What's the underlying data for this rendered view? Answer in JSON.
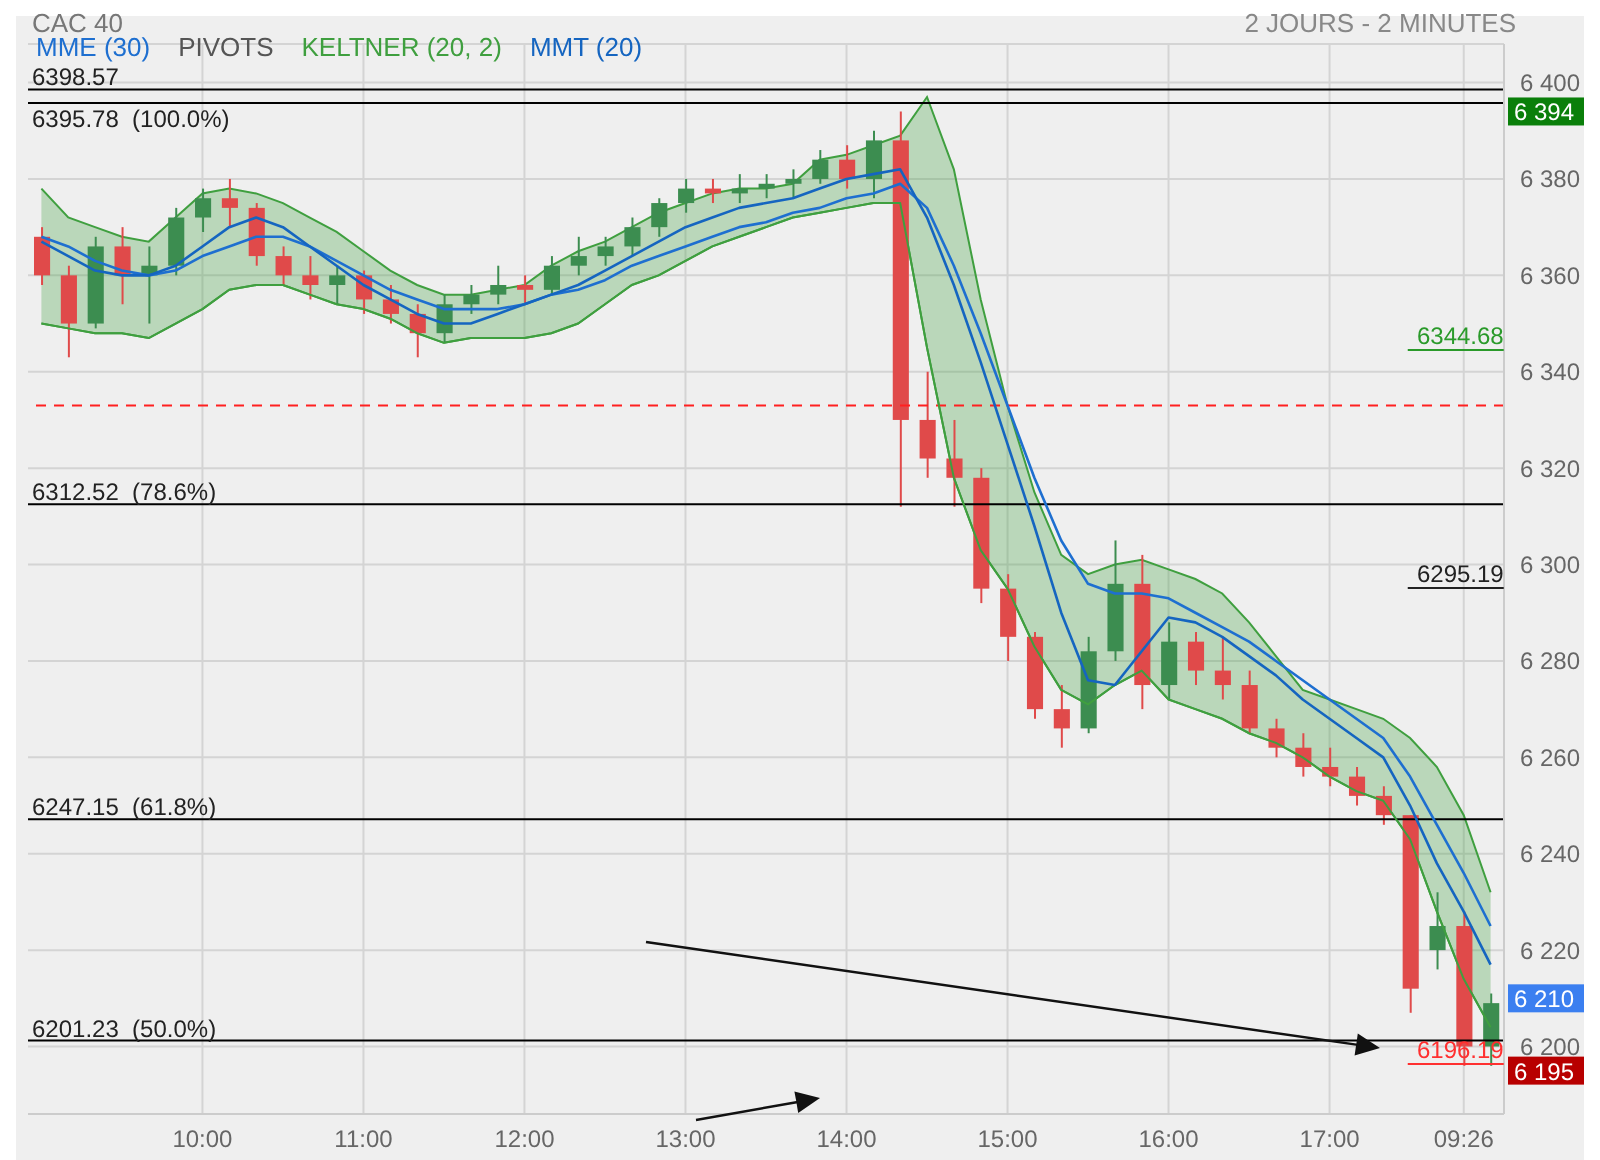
{
  "chart_data": {
    "type": "candlestick",
    "title": "CAC 40",
    "subtitle": "2 JOURS - 2 MINUTES",
    "categories": [
      null,
      null,
      null,
      null,
      null,
      null,
      "10:00",
      null,
      null,
      null,
      null,
      null,
      "11:00",
      null,
      null,
      null,
      null,
      null,
      "12:00",
      null,
      null,
      null,
      null,
      null,
      "13:00",
      null,
      null,
      null,
      null,
      null,
      "14:00",
      null,
      null,
      null,
      null,
      null,
      "15:00",
      null,
      null,
      null,
      null,
      null,
      "16:00",
      null,
      null,
      null,
      null,
      null,
      "17:00",
      null,
      null,
      null,
      null,
      "09:26",
      null
    ],
    "ohlc": [
      [
        6368,
        6370,
        6358,
        6360
      ],
      [
        6360,
        6362,
        6343,
        6350
      ],
      [
        6350,
        6368,
        6349,
        6366
      ],
      [
        6366,
        6370,
        6354,
        6360
      ],
      [
        6360,
        6366,
        6350,
        6362
      ],
      [
        6362,
        6374,
        6360,
        6372
      ],
      [
        6372,
        6378,
        6369,
        6376
      ],
      [
        6376,
        6380,
        6370,
        6374
      ],
      [
        6374,
        6375,
        6362,
        6364
      ],
      [
        6364,
        6366,
        6358,
        6360
      ],
      [
        6360,
        6364,
        6355,
        6358
      ],
      [
        6358,
        6362,
        6354,
        6360
      ],
      [
        6360,
        6361,
        6352,
        6355
      ],
      [
        6355,
        6358,
        6350,
        6352
      ],
      [
        6352,
        6354,
        6343,
        6348
      ],
      [
        6348,
        6356,
        6346,
        6354
      ],
      [
        6354,
        6358,
        6352,
        6356
      ],
      [
        6356,
        6362,
        6354,
        6358
      ],
      [
        6358,
        6360,
        6354,
        6357
      ],
      [
        6357,
        6364,
        6356,
        6362
      ],
      [
        6362,
        6368,
        6360,
        6364
      ],
      [
        6364,
        6368,
        6362,
        6366
      ],
      [
        6366,
        6372,
        6364,
        6370
      ],
      [
        6370,
        6376,
        6368,
        6375
      ],
      [
        6375,
        6380,
        6373,
        6378
      ],
      [
        6378,
        6380,
        6375,
        6377
      ],
      [
        6377,
        6381,
        6375,
        6378
      ],
      [
        6378,
        6381,
        6376,
        6379
      ],
      [
        6379,
        6382,
        6376,
        6380
      ],
      [
        6380,
        6386,
        6379,
        6384
      ],
      [
        6384,
        6387,
        6378,
        6380
      ],
      [
        6380,
        6390,
        6376,
        6388
      ],
      [
        6388,
        6394,
        6312,
        6330
      ],
      [
        6330,
        6340,
        6318,
        6322
      ],
      [
        6322,
        6330,
        6312,
        6318
      ],
      [
        6318,
        6320,
        6292,
        6295
      ],
      [
        6295,
        6298,
        6280,
        6285
      ],
      [
        6285,
        6286,
        6268,
        6270
      ],
      [
        6270,
        6275,
        6262,
        6266
      ],
      [
        6266,
        6285,
        6265,
        6282
      ],
      [
        6282,
        6305,
        6280,
        6296
      ],
      [
        6296,
        6302,
        6270,
        6275
      ],
      [
        6275,
        6288,
        6272,
        6284
      ],
      [
        6284,
        6286,
        6275,
        6278
      ],
      [
        6278,
        6285,
        6272,
        6275
      ],
      [
        6275,
        6278,
        6265,
        6266
      ],
      [
        6266,
        6268,
        6260,
        6262
      ],
      [
        6262,
        6265,
        6256,
        6258
      ],
      [
        6258,
        6262,
        6254,
        6256
      ],
      [
        6256,
        6258,
        6250,
        6252
      ],
      [
        6252,
        6254,
        6246,
        6248
      ],
      [
        6248,
        6248,
        6207,
        6212
      ],
      [
        6220,
        6232,
        6216,
        6225
      ],
      [
        6225,
        6228,
        6196,
        6200
      ],
      [
        6200,
        6211,
        6196,
        6209
      ]
    ],
    "colors": [
      "#e04a4a",
      "#e04a4a",
      "#3c8d50",
      "#e04a4a",
      "#3c8d50",
      "#3c8d50",
      "#3c8d50",
      "#e04a4a",
      "#e04a4a",
      "#e04a4a",
      "#e04a4a",
      "#3c8d50",
      "#e04a4a",
      "#e04a4a",
      "#e04a4a",
      "#3c8d50",
      "#3c8d50",
      "#3c8d50",
      "#e04a4a",
      "#3c8d50",
      "#3c8d50",
      "#3c8d50",
      "#3c8d50",
      "#3c8d50",
      "#3c8d50",
      "#e04a4a",
      "#3c8d50",
      "#3c8d50",
      "#3c8d50",
      "#3c8d50",
      "#e04a4a",
      "#3c8d50",
      "#e04a4a",
      "#e04a4a",
      "#e04a4a",
      "#e04a4a",
      "#e04a4a",
      "#e04a4a",
      "#e04a4a",
      "#3c8d50",
      "#3c8d50",
      "#e04a4a",
      "#3c8d50",
      "#e04a4a",
      "#e04a4a",
      "#e04a4a",
      "#e04a4a",
      "#e04a4a",
      "#e04a4a",
      "#e04a4a",
      "#e04a4a",
      "#e04a4a",
      "#3c8d50",
      "#e04a4a",
      "#3c8d50"
    ],
    "series": [
      {
        "name": "MME (30)",
        "type": "line",
        "color": "#1e6fd0",
        "values": [
          6368,
          6366,
          6363,
          6361,
          6360,
          6361,
          6364,
          6366,
          6368,
          6368,
          6366,
          6363,
          6360,
          6357,
          6355,
          6353,
          6353,
          6353,
          6354,
          6356,
          6357,
          6359,
          6362,
          6364,
          6366,
          6368,
          6370,
          6371,
          6373,
          6374,
          6376,
          6377,
          6379,
          6374,
          6362,
          6348,
          6333,
          6318,
          6305,
          6296,
          6294,
          6294,
          6293,
          6290,
          6287,
          6284,
          6280,
          6276,
          6272,
          6268,
          6264,
          6256,
          6246,
          6236,
          6225
        ]
      },
      {
        "name": "KELTNER (20, 2)",
        "type": "area",
        "color": "#3f9f3f",
        "values": [
          6378,
          6372,
          6370,
          6368,
          6367,
          6372,
          6377,
          6378,
          6377,
          6375,
          6372,
          6369,
          6365,
          6361,
          6358,
          6356,
          6356,
          6357,
          6358,
          6362,
          6365,
          6367,
          6370,
          6373,
          6375,
          6377,
          6378,
          6378,
          6379,
          6384,
          6385,
          6387,
          6389,
          6397,
          6382,
          6355,
          6333,
          6315,
          6302,
          6298,
          6300,
          6301,
          6299,
          6297,
          6294,
          6288,
          6281,
          6274,
          6272,
          6270,
          6268,
          6264,
          6258,
          6248,
          6232
        ]
      },
      {
        "type": "line",
        "color": "#3f9f3f",
        "values": [
          6350,
          6349,
          6348,
          6348,
          6347,
          6350,
          6353,
          6357,
          6358,
          6358,
          6356,
          6354,
          6353,
          6351,
          6348,
          6346,
          6347,
          6347,
          6347,
          6348,
          6350,
          6354,
          6358,
          6360,
          6363,
          6366,
          6368,
          6370,
          6372,
          6373,
          6374,
          6375,
          6375,
          6345,
          6318,
          6303,
          6295,
          6283,
          6274,
          6271,
          6275,
          6278,
          6272,
          6270,
          6268,
          6265,
          6263,
          6260,
          6256,
          6253,
          6251,
          6243,
          6228,
          6214,
          6204
        ]
      },
      {
        "name": "MMT (20)",
        "type": "line",
        "color": "#1565c0",
        "values": [
          6367,
          6364,
          6361,
          6360,
          6360,
          6362,
          6366,
          6370,
          6372,
          6370,
          6366,
          6362,
          6358,
          6355,
          6352,
          6350,
          6350,
          6352,
          6354,
          6356,
          6358,
          6361,
          6364,
          6367,
          6370,
          6372,
          6374,
          6375,
          6376,
          6378,
          6380,
          6381,
          6382,
          6372,
          6358,
          6342,
          6325,
          6308,
          6290,
          6276,
          6275,
          6282,
          6289,
          6288,
          6285,
          6281,
          6277,
          6272,
          6268,
          6264,
          6260,
          6250,
          6238,
          6228,
          6217
        ]
      }
    ],
    "ylim": [
      6186,
      6408
    ],
    "yticks": [
      {
        "value": 6200,
        "label": "6 200"
      },
      {
        "value": 6220,
        "label": "6 220"
      },
      {
        "value": 6240,
        "label": "6 240"
      },
      {
        "value": 6260,
        "label": "6 260"
      },
      {
        "value": 6280,
        "label": "6 280"
      },
      {
        "value": 6300,
        "label": "6 300"
      },
      {
        "value": 6320,
        "label": "6 320"
      },
      {
        "value": 6340,
        "label": "6 340"
      },
      {
        "value": 6360,
        "label": "6 360"
      },
      {
        "value": 6380,
        "label": "6 380"
      },
      {
        "value": 6400,
        "label": "6 400"
      }
    ],
    "ref_lines": [
      {
        "axis": "y",
        "value": 6398.57,
        "label": "6398.57",
        "color": "#000000",
        "line_style": "solid"
      },
      {
        "axis": "y",
        "value": 6395.78,
        "label": "6395.78  (100.0%)",
        "color": "#000000",
        "line_style": "solid"
      },
      {
        "axis": "y",
        "value": 6312.52,
        "label": "6312.52  (78.6%)",
        "color": "#000000",
        "line_style": "solid"
      },
      {
        "axis": "y",
        "value": 6247.15,
        "label": "6247.15  (61.8%)",
        "color": "#000000",
        "line_style": "solid"
      },
      {
        "axis": "y",
        "value": 6201.23,
        "label": "6201.23  (50.0%)",
        "color": "#000000",
        "line_style": "solid"
      },
      {
        "axis": "y",
        "value": 6333,
        "color": "#ff2020",
        "line_style": "dashed"
      }
    ],
    "annotations": [
      "PIVOTS",
      {
        "text": "6 394",
        "y": 6394
      },
      {
        "text": "6 210",
        "y": 6210
      },
      {
        "text": "6 195",
        "y": 6195
      },
      "6344.68",
      "6295.19",
      "6196.19"
    ],
    "grid": true,
    "legend": "top left"
  }
}
